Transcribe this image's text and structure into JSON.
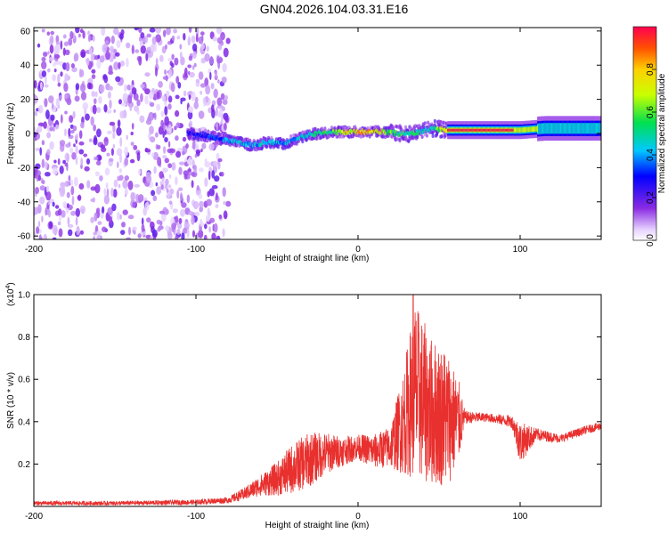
{
  "title": "GN04.2026.104.03.31.E16",
  "colors": {
    "snr_line": "#e8302e",
    "background": "#ffffff",
    "axis": "#000000"
  },
  "chart_data": [
    {
      "type": "heatmap",
      "title": "GN04.2026.104.03.31.E16",
      "xlabel": "Height of straight line (km)",
      "ylabel": "Frequency (Hz)",
      "xlim": [
        -200,
        150
      ],
      "ylim": [
        -62,
        62
      ],
      "x_ticks": [
        -200,
        -100,
        0,
        100
      ],
      "x_tick_labels": [
        "-200",
        "-100",
        "0",
        "100"
      ],
      "y_ticks": [
        -60,
        -40,
        -20,
        0,
        20,
        40,
        60
      ],
      "y_tick_labels": [
        "-60",
        "-40",
        "-20",
        "0",
        "20",
        "40",
        "60"
      ],
      "colorbar": {
        "label": "Normalized spectral amplitude",
        "range": [
          0,
          1
        ],
        "ticks": [
          0.0,
          0.2,
          0.4,
          0.6,
          0.8
        ],
        "tick_labels": [
          "0.0",
          "0.2",
          "0.4",
          "0.6",
          "0.8"
        ],
        "colormap": "rainbow (white-violet-blue-cyan-green-yellow-red)"
      },
      "ridge": [
        {
          "x": -105,
          "y": 0,
          "amp": 0.3
        },
        {
          "x": -95,
          "y": -1,
          "amp": 0.35
        },
        {
          "x": -85,
          "y": -3,
          "amp": 0.4
        },
        {
          "x": -75,
          "y": -5,
          "amp": 0.5
        },
        {
          "x": -65,
          "y": -7,
          "amp": 0.45
        },
        {
          "x": -55,
          "y": -5,
          "amp": 0.55
        },
        {
          "x": -45,
          "y": -6,
          "amp": 0.45
        },
        {
          "x": -35,
          "y": -2,
          "amp": 0.5
        },
        {
          "x": -25,
          "y": 0,
          "amp": 0.6
        },
        {
          "x": -15,
          "y": 1,
          "amp": 0.7
        },
        {
          "x": -5,
          "y": 1,
          "amp": 0.85
        },
        {
          "x": 5,
          "y": 1,
          "amp": 0.95
        },
        {
          "x": 15,
          "y": 1,
          "amp": 0.85
        },
        {
          "x": 25,
          "y": 0,
          "amp": 0.6
        },
        {
          "x": 35,
          "y": 0,
          "amp": 0.6
        },
        {
          "x": 45,
          "y": 3,
          "amp": 0.5
        },
        {
          "x": 55,
          "y": 2,
          "amp": 0.95
        },
        {
          "x": 70,
          "y": 2,
          "amp": 1.0
        },
        {
          "x": 85,
          "y": 2,
          "amp": 1.0
        },
        {
          "x": 100,
          "y": 2,
          "amp": 0.9
        },
        {
          "x": 115,
          "y": 3,
          "amp": 0.55
        },
        {
          "x": 130,
          "y": 3,
          "amp": 0.45
        },
        {
          "x": 150,
          "y": 3,
          "amp": 0.45
        }
      ],
      "noise_region": {
        "x_range": [
          -200,
          -80
        ],
        "y_range": [
          -62,
          62
        ],
        "amp": 0.2
      }
    },
    {
      "type": "line",
      "xlabel": "Height of straight line (km)",
      "ylabel": "SNR (10 * v/v)",
      "y_multiplier": "(x10^4)",
      "y_multiplier_base": "(x10",
      "y_multiplier_exp": "4",
      "xlim": [
        -200,
        150
      ],
      "ylim": [
        0,
        1.0
      ],
      "x_ticks": [
        -200,
        -100,
        0,
        100
      ],
      "x_tick_labels": [
        "-200",
        "-100",
        "0",
        "100"
      ],
      "y_ticks": [
        0.2,
        0.4,
        0.6,
        0.8,
        1.0
      ],
      "y_tick_labels": [
        "0.2",
        "0.4",
        "0.6",
        "0.8",
        "1.0"
      ],
      "series": [
        {
          "name": "SNR",
          "color": "#e8302e",
          "envelope": [
            {
              "x": -200,
              "mean": 0.015,
              "spread": 0.01
            },
            {
              "x": -150,
              "mean": 0.015,
              "spread": 0.01
            },
            {
              "x": -100,
              "mean": 0.02,
              "spread": 0.012
            },
            {
              "x": -80,
              "mean": 0.03,
              "spread": 0.015
            },
            {
              "x": -70,
              "mean": 0.06,
              "spread": 0.03
            },
            {
              "x": -60,
              "mean": 0.1,
              "spread": 0.05
            },
            {
              "x": -50,
              "mean": 0.13,
              "spread": 0.08
            },
            {
              "x": -40,
              "mean": 0.18,
              "spread": 0.12
            },
            {
              "x": -30,
              "mean": 0.22,
              "spread": 0.13
            },
            {
              "x": -20,
              "mean": 0.25,
              "spread": 0.1
            },
            {
              "x": -10,
              "mean": 0.26,
              "spread": 0.07
            },
            {
              "x": 0,
              "mean": 0.28,
              "spread": 0.06
            },
            {
              "x": 10,
              "mean": 0.26,
              "spread": 0.08
            },
            {
              "x": 20,
              "mean": 0.28,
              "spread": 0.1
            },
            {
              "x": 28,
              "mean": 0.4,
              "spread": 0.25
            },
            {
              "x": 35,
              "mean": 0.55,
              "spread": 0.42
            },
            {
              "x": 45,
              "mean": 0.45,
              "spread": 0.35
            },
            {
              "x": 55,
              "mean": 0.42,
              "spread": 0.33
            },
            {
              "x": 62,
              "mean": 0.4,
              "spread": 0.2
            },
            {
              "x": 66,
              "mean": 0.42,
              "spread": 0.03
            },
            {
              "x": 80,
              "mean": 0.42,
              "spread": 0.02
            },
            {
              "x": 95,
              "mean": 0.4,
              "spread": 0.03
            },
            {
              "x": 100,
              "mean": 0.3,
              "spread": 0.1
            },
            {
              "x": 110,
              "mean": 0.34,
              "spread": 0.03
            },
            {
              "x": 125,
              "mean": 0.32,
              "spread": 0.02
            },
            {
              "x": 140,
              "mean": 0.36,
              "spread": 0.02
            },
            {
              "x": 150,
              "mean": 0.38,
              "spread": 0.02
            }
          ],
          "peak": {
            "x": 34,
            "y": 1.0
          }
        }
      ]
    }
  ]
}
